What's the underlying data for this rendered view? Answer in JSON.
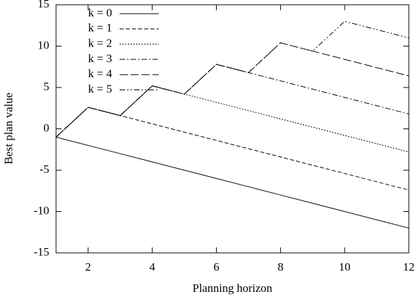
{
  "chart_data": {
    "type": "line",
    "xlabel": "Planning horizon",
    "ylabel": "Best plan value",
    "x": [
      1,
      2,
      3,
      4,
      5,
      6,
      7,
      8,
      9,
      10,
      11,
      12
    ],
    "series": [
      {
        "name": "k = 0",
        "color": "#000000",
        "style": "solid",
        "values": [
          -1,
          -2,
          -3,
          -4,
          -5,
          -6,
          -7,
          -8,
          -9,
          -10,
          -11,
          -12
        ]
      },
      {
        "name": "k = 1",
        "color": "#000000",
        "style": "dashed",
        "values": [
          -1,
          2.6,
          1.6,
          0.6,
          -0.4,
          -1.4,
          -2.4,
          -3.4,
          -4.4,
          -5.4,
          -6.4,
          -7.4
        ]
      },
      {
        "name": "k = 2",
        "color": "#000000",
        "style": "dotted",
        "values": [
          -1,
          2.6,
          1.6,
          5.2,
          4.2,
          3.2,
          2.2,
          1.2,
          0.2,
          -0.8,
          -1.8,
          -2.8
        ]
      },
      {
        "name": "k = 3",
        "color": "#000000",
        "style": "dashdot",
        "values": [
          -1,
          2.6,
          1.6,
          5.2,
          4.2,
          7.8,
          6.8,
          5.8,
          4.8,
          3.8,
          2.8,
          1.8
        ]
      },
      {
        "name": "k = 4",
        "color": "#000000",
        "style": "longdash",
        "values": [
          -1,
          2.6,
          1.6,
          5.2,
          4.2,
          7.8,
          6.8,
          10.4,
          9.4,
          8.4,
          7.4,
          6.4
        ]
      },
      {
        "name": "k = 5",
        "color": "#000000",
        "style": "dashdotdot",
        "values": [
          -1,
          2.6,
          1.6,
          5.2,
          4.2,
          7.8,
          6.8,
          10.4,
          9.4,
          13,
          12,
          11
        ]
      }
    ],
    "xlim": [
      1,
      12
    ],
    "xticks": [
      2,
      4,
      6,
      8,
      10,
      12
    ],
    "ylim": [
      -15,
      15
    ],
    "yticks": [
      -15,
      -10,
      -5,
      0,
      5,
      10,
      15
    ],
    "legend": "upper left",
    "grid": false
  }
}
